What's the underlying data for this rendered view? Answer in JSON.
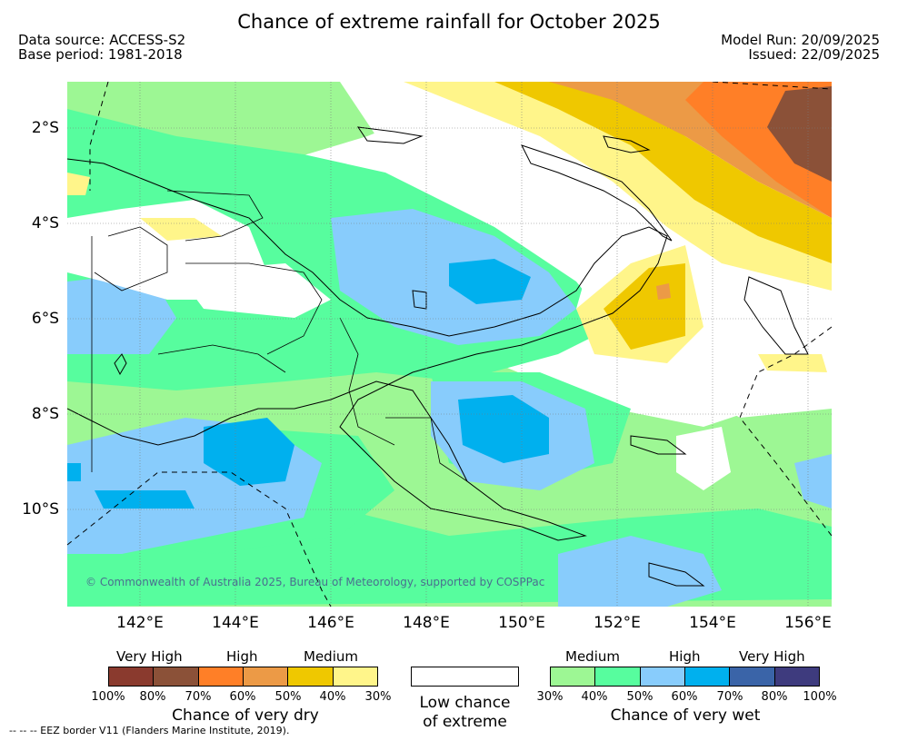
{
  "header": {
    "title": "Chance of extreme rainfall for October 2025",
    "data_source": "Data source: ACCESS-S2",
    "base_period": "Base period: 1981-2018",
    "model_run": "Model Run: 20/09/2025",
    "issued": "Issued: 22/09/2025"
  },
  "map": {
    "lat_labels": [
      "2°S",
      "4°S",
      "6°S",
      "8°S",
      "10°S"
    ],
    "lon_labels": [
      "142°E",
      "144°E",
      "146°E",
      "148°E",
      "150°E",
      "152°E",
      "154°E",
      "156°E"
    ],
    "copyright": "© Commonwealth of Australia 2025, Bureau of Meteorology, supported by COSPPac",
    "colors": {
      "background": "#ffffff",
      "dry_30": "#fff58a",
      "dry_40": "#efc800",
      "dry_50": "#ec9a46",
      "dry_60": "#ff7f27",
      "dry_70": "#8b5138",
      "dry_80": "#8a3a2e",
      "wet_30": "#9df794",
      "wet_40": "#57fd9e",
      "wet_50": "#88ccfc",
      "wet_60": "#00b0ee",
      "wet_70": "#3a64a8",
      "wet_80": "#3e3b7e",
      "land_outline": "#000000",
      "grid": "#7a7a7a"
    }
  },
  "legend": {
    "dry": {
      "levels": [
        "Very High",
        "High",
        "Medium"
      ],
      "colors": [
        "#8a3a2e",
        "#8b5138",
        "#ff7f27",
        "#ec9a46",
        "#efc800",
        "#fff58a"
      ],
      "ticks": [
        "100%",
        "80%",
        "70%",
        "60%",
        "50%",
        "40%",
        "30%"
      ],
      "caption": "Chance of very dry"
    },
    "low": {
      "caption_line1": "Low chance",
      "caption_line2": "of extreme"
    },
    "wet": {
      "levels": [
        "Medium",
        "High",
        "Very High"
      ],
      "colors": [
        "#9df794",
        "#57fd9e",
        "#88ccfc",
        "#00b0ee",
        "#3a64a8",
        "#3e3b7e"
      ],
      "ticks": [
        "30%",
        "40%",
        "50%",
        "60%",
        "70%",
        "80%",
        "100%"
      ],
      "caption": "Chance of very wet"
    }
  },
  "footer": {
    "eez_note": "--  --  -- EEZ border V11 (Flanders Marine Institute, 2019)."
  }
}
